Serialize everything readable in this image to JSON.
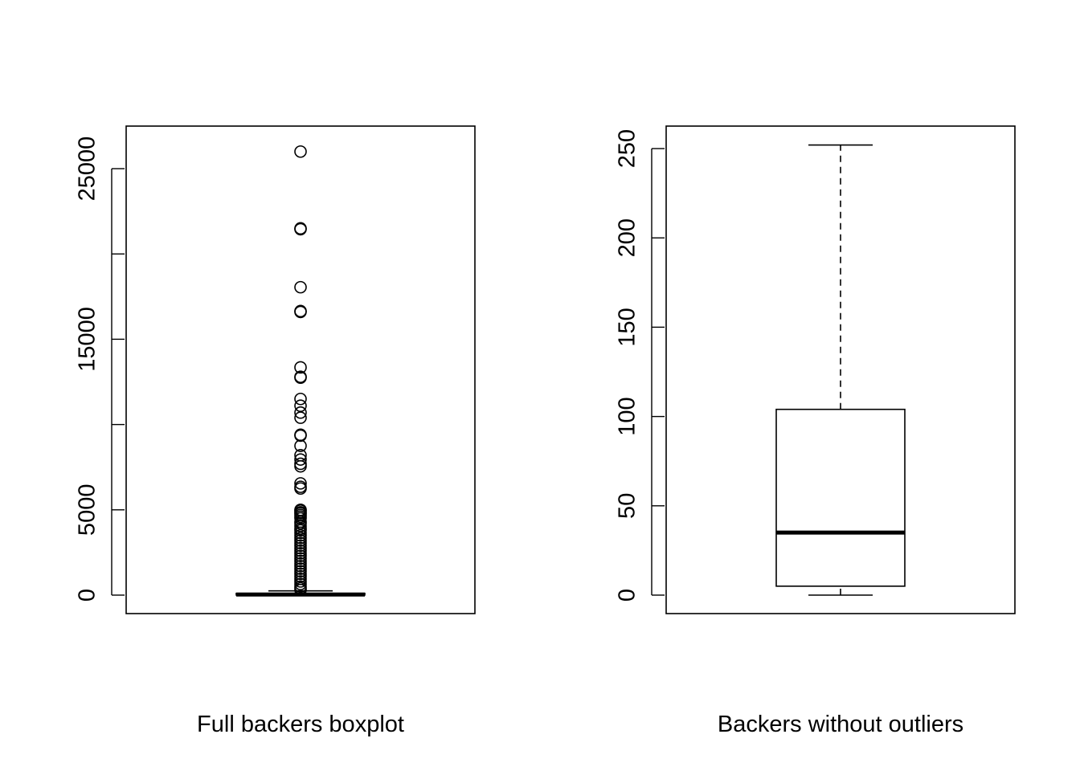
{
  "chart_data": [
    {
      "type": "boxplot",
      "xlabel": "Full backers boxplot",
      "ylabel": "",
      "ylim": [
        0,
        26500
      ],
      "yticks": [
        0,
        5000,
        10000,
        15000,
        20000,
        25000
      ],
      "ytick_labels": [
        "0",
        "5000",
        "",
        "15000",
        "",
        "25000"
      ],
      "box": {
        "min": 0,
        "q1": 5,
        "median": 35,
        "q3": 104,
        "max": 252
      },
      "outliers": [
        26000,
        21500,
        21450,
        18050,
        16650,
        16600,
        13350,
        12800,
        12750,
        11500,
        11100,
        10700,
        10400,
        9400,
        9350,
        8750,
        8200,
        7950,
        7700,
        7550,
        6550,
        6350,
        6250,
        5000,
        4950,
        4850,
        4800,
        4700,
        4600,
        4500,
        4300,
        4200,
        4050,
        3900,
        3800,
        3650,
        3500,
        3350,
        3200,
        3050,
        2900,
        2750,
        2600,
        2450,
        2300,
        2150,
        2000,
        1850,
        1700,
        1550,
        1400,
        1250,
        1100,
        950,
        800,
        650,
        500,
        400,
        300
      ]
    },
    {
      "type": "boxplot",
      "xlabel": "Backers without outliers",
      "ylabel": "",
      "ylim": [
        0,
        252
      ],
      "yticks": [
        0,
        50,
        100,
        150,
        200,
        250
      ],
      "ytick_labels": [
        "0",
        "50",
        "100",
        "150",
        "200",
        "250"
      ],
      "box": {
        "min": 0,
        "q1": 5,
        "median": 35,
        "q3": 104,
        "max": 252
      },
      "outliers": []
    }
  ]
}
